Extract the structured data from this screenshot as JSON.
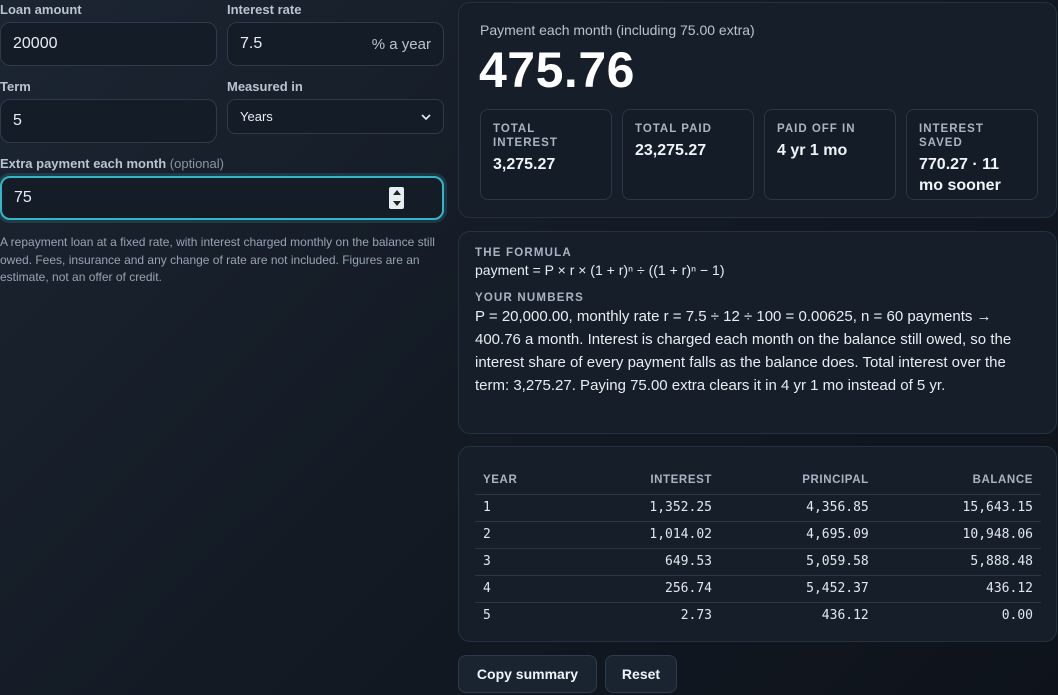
{
  "form": {
    "loan_amount_label": "Loan amount",
    "loan_amount_value": "20000",
    "interest_rate_label": "Interest rate",
    "interest_rate_value": "7.5",
    "interest_rate_suffix": "% a year",
    "term_label": "Term",
    "term_value": "5",
    "measured_in_label": "Measured in",
    "measured_in_value": "Years",
    "extra_label": "Extra payment each month",
    "extra_optional": "(optional)",
    "extra_value": "75",
    "note": "A repayment loan at a fixed rate, with interest charged monthly on the balance still owed. Fees, insurance and any change of rate are not included. Figures are an estimate, not an offer of credit."
  },
  "summary": {
    "caption": "Payment each month (including 75.00 extra)",
    "payment": "475.76",
    "cards": [
      {
        "key": "TOTAL INTEREST",
        "value": "3,275.27"
      },
      {
        "key": "TOTAL PAID",
        "value": "23,275.27"
      },
      {
        "key": "PAID OFF IN",
        "value": "4 yr 1 mo"
      },
      {
        "key": "INTEREST SAVED",
        "value": "770.27 · 11 mo sooner"
      }
    ]
  },
  "formula": {
    "heading": "THE FORMULA",
    "text": "payment = P × r × (1 + r)ⁿ ÷ ((1 + r)ⁿ − 1)",
    "numbers_heading": "YOUR NUMBERS",
    "numbers_text": "P = 20,000.00, monthly rate r = 7.5 ÷ 12 ÷ 100 = 0.00625, n = 60 payments → 400.76 a month. Interest is charged each month on the balance still owed, so the interest share of every payment falls as the balance does. Total interest over the term: 3,275.27. Paying 75.00 extra clears it in 4 yr 1 mo instead of 5 yr."
  },
  "schedule": {
    "headers": [
      "YEAR",
      "INTEREST",
      "PRINCIPAL",
      "BALANCE"
    ],
    "rows": [
      [
        "1",
        "1,352.25",
        "4,356.85",
        "15,643.15"
      ],
      [
        "2",
        "1,014.02",
        "4,695.09",
        "10,948.06"
      ],
      [
        "3",
        "649.53",
        "5,059.58",
        "5,888.48"
      ],
      [
        "4",
        "256.74",
        "5,452.37",
        "436.12"
      ],
      [
        "5",
        "2.73",
        "436.12",
        "0.00"
      ]
    ]
  },
  "actions": {
    "copy_label": "Copy summary",
    "reset_label": "Reset"
  }
}
